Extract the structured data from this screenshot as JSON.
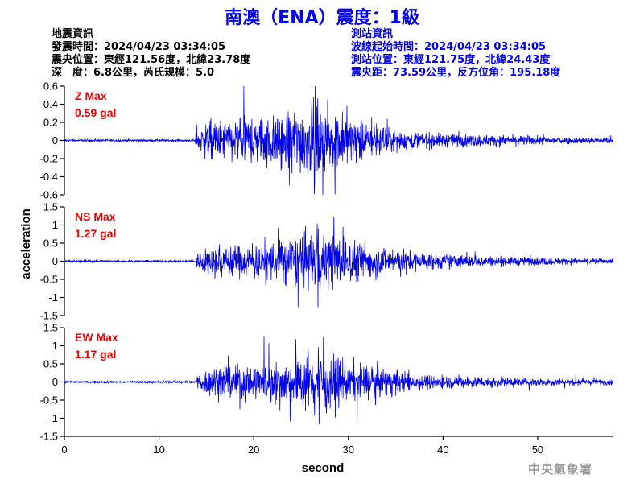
{
  "title": "南澳（ENA）震度：1級",
  "earthquake_info": {
    "heading": "地震資訊",
    "origin_time": "發震時間：2024/04/23 03:34:05",
    "epicenter": "震央位置：東經121.56度，北緯23.78度",
    "depth_magnitude": "深　度：6.8公里，芮氏規模：5.0"
  },
  "station_info": {
    "heading": "測站資訊",
    "wave_start": "波線起始時間：2024/04/23 03:34:05",
    "station_location": "測站位置：東經121.75度，北緯24.43度",
    "distance_azimuth": "震央距：73.59公里，反方位角：195.18度"
  },
  "footer": "中央氣象署",
  "chart_data": {
    "type": "line",
    "xlabel": "second",
    "ylabel": "acceleration",
    "xlim": [
      0,
      58
    ],
    "xticks": [
      "0",
      "10",
      "20",
      "30",
      "40",
      "50"
    ],
    "xtick_values": [
      0,
      10,
      20,
      30,
      40,
      50
    ],
    "line_color": "#0000ee",
    "label_color": "#ee0000",
    "panels": [
      {
        "name": "Z Max",
        "max_label": "0.59 gal",
        "max_value": 0.59,
        "ylim": [
          -0.6,
          0.6
        ],
        "yticks": [
          "0.6",
          "0.4",
          "0.2",
          "0",
          "-0.2",
          "-0.4",
          "-0.6"
        ],
        "ytick_values": [
          0.6,
          0.4,
          0.2,
          0,
          -0.2,
          -0.4,
          -0.6
        ],
        "onset_s": 13.8,
        "peak_s": 26.4,
        "envelope": [
          [
            13.8,
            0.12
          ],
          [
            15,
            0.22
          ],
          [
            18,
            0.26
          ],
          [
            22,
            0.3
          ],
          [
            25,
            0.4
          ],
          [
            27,
            0.42
          ],
          [
            30,
            0.28
          ],
          [
            35,
            0.12
          ],
          [
            40,
            0.08
          ],
          [
            50,
            0.05
          ],
          [
            58,
            0.03
          ]
        ]
      },
      {
        "name": "NS Max",
        "max_label": "1.27 gal",
        "max_value": 1.27,
        "ylim": [
          -1.5,
          1.5
        ],
        "yticks": [
          "1.5",
          "1",
          "0.5",
          "0",
          "-0.5",
          "-1",
          "-1.5"
        ],
        "ytick_values": [
          1.5,
          1,
          0.5,
          0,
          -0.5,
          -1,
          -1.5
        ],
        "onset_s": 13.9,
        "peak_s": 26.8,
        "envelope": [
          [
            13.9,
            0.25
          ],
          [
            16,
            0.45
          ],
          [
            20,
            0.5
          ],
          [
            24,
            0.7
          ],
          [
            27,
            0.9
          ],
          [
            30,
            0.65
          ],
          [
            34,
            0.4
          ],
          [
            38,
            0.25
          ],
          [
            45,
            0.15
          ],
          [
            58,
            0.07
          ]
        ]
      },
      {
        "name": "EW Max",
        "max_label": "1.17 gal",
        "max_value": 1.17,
        "ylim": [
          -1.5,
          1.5
        ],
        "yticks": [
          "1.5",
          "1",
          "0.5",
          "0",
          "-0.5",
          "-1",
          "-1.5"
        ],
        "ytick_values": [
          1.5,
          1,
          0.5,
          0,
          -0.5,
          -1,
          -1.5
        ],
        "onset_s": 14.0,
        "peak_s": 26.9,
        "envelope": [
          [
            14,
            0.25
          ],
          [
            16,
            0.5
          ],
          [
            20,
            0.55
          ],
          [
            24,
            0.65
          ],
          [
            27,
            0.85
          ],
          [
            30,
            0.6
          ],
          [
            34,
            0.4
          ],
          [
            38,
            0.22
          ],
          [
            45,
            0.14
          ],
          [
            58,
            0.08
          ]
        ]
      }
    ]
  }
}
